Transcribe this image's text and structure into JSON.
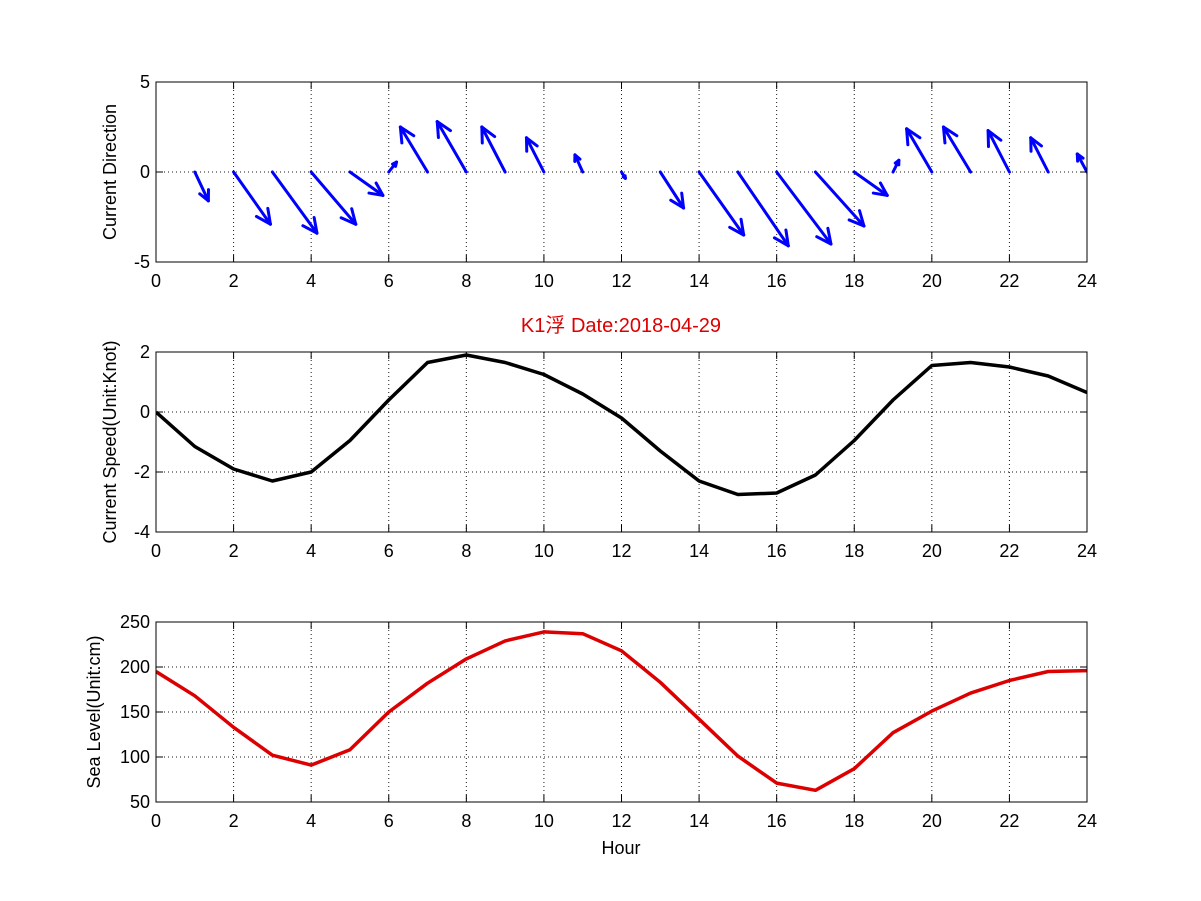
{
  "chart_data": [
    {
      "type": "quiver",
      "ylabel": "Current Direction",
      "xlim": [
        0,
        24
      ],
      "ylim": [
        -5,
        5
      ],
      "xticks": [
        0,
        2,
        4,
        6,
        8,
        10,
        12,
        14,
        16,
        18,
        20,
        22,
        24
      ],
      "yticks": [
        -5,
        0,
        5
      ],
      "grid": true,
      "color": "#0000ff",
      "vectors": [
        {
          "x": 1,
          "u": 0.35,
          "v": -1.6
        },
        {
          "x": 2,
          "u": 0.95,
          "v": -2.9
        },
        {
          "x": 3,
          "u": 1.15,
          "v": -3.4
        },
        {
          "x": 4,
          "u": 1.15,
          "v": -2.9
        },
        {
          "x": 5,
          "u": 0.85,
          "v": -1.3
        },
        {
          "x": 6,
          "u": 0.2,
          "v": 0.55
        },
        {
          "x": 7,
          "u": -0.7,
          "v": 2.5
        },
        {
          "x": 8,
          "u": -0.75,
          "v": 2.8
        },
        {
          "x": 9,
          "u": -0.6,
          "v": 2.5
        },
        {
          "x": 10,
          "u": -0.45,
          "v": 1.9
        },
        {
          "x": 11,
          "u": -0.2,
          "v": 0.95
        },
        {
          "x": 12,
          "u": 0.1,
          "v": -0.35
        },
        {
          "x": 13,
          "u": 0.6,
          "v": -2.0
        },
        {
          "x": 14,
          "u": 1.15,
          "v": -3.5
        },
        {
          "x": 15,
          "u": 1.3,
          "v": -4.1
        },
        {
          "x": 16,
          "u": 1.4,
          "v": -4.0
        },
        {
          "x": 17,
          "u": 1.25,
          "v": -3.0
        },
        {
          "x": 18,
          "u": 0.85,
          "v": -1.3
        },
        {
          "x": 19,
          "u": 0.15,
          "v": 0.65
        },
        {
          "x": 20,
          "u": -0.65,
          "v": 2.4
        },
        {
          "x": 21,
          "u": -0.7,
          "v": 2.5
        },
        {
          "x": 22,
          "u": -0.55,
          "v": 2.3
        },
        {
          "x": 23,
          "u": -0.45,
          "v": 1.9
        },
        {
          "x": 24,
          "u": -0.25,
          "v": 1.0
        }
      ]
    },
    {
      "type": "line",
      "title": "K1浮    Date:2018-04-29",
      "ylabel": "Current Speed(Unit:Knot)",
      "xlim": [
        0,
        24
      ],
      "ylim": [
        -4,
        2
      ],
      "xticks": [
        0,
        2,
        4,
        6,
        8,
        10,
        12,
        14,
        16,
        18,
        20,
        22,
        24
      ],
      "yticks": [
        -4,
        -2,
        0,
        2
      ],
      "grid": true,
      "color": "#000000",
      "x": [
        0,
        1,
        2,
        3,
        4,
        5,
        6,
        7,
        8,
        9,
        10,
        11,
        12,
        13,
        14,
        15,
        16,
        17,
        18,
        19,
        20,
        21,
        22,
        23,
        24
      ],
      "y": [
        0.0,
        -1.15,
        -1.9,
        -2.3,
        -2.0,
        -0.95,
        0.4,
        1.65,
        1.9,
        1.65,
        1.25,
        0.6,
        -0.2,
        -1.3,
        -2.3,
        -2.75,
        -2.7,
        -2.1,
        -0.95,
        0.4,
        1.55,
        1.65,
        1.5,
        1.2,
        0.65
      ]
    },
    {
      "type": "line",
      "xlabel": "Hour",
      "ylabel": "Sea Level(Unit:cm)",
      "xlim": [
        0,
        24
      ],
      "ylim": [
        50,
        250
      ],
      "xticks": [
        0,
        2,
        4,
        6,
        8,
        10,
        12,
        14,
        16,
        18,
        20,
        22,
        24
      ],
      "yticks": [
        50,
        100,
        150,
        200,
        250
      ],
      "grid": true,
      "color": "#dd0000",
      "x": [
        0,
        1,
        2,
        3,
        4,
        5,
        6,
        7,
        8,
        9,
        10,
        11,
        12,
        13,
        14,
        15,
        16,
        17,
        18,
        19,
        20,
        21,
        22,
        23,
        24
      ],
      "y": [
        195,
        168,
        133,
        102,
        91,
        108,
        150,
        182,
        209,
        229,
        239,
        237,
        218,
        183,
        142,
        101,
        71,
        63,
        87,
        127,
        151,
        171,
        185,
        195,
        196
      ]
    }
  ]
}
